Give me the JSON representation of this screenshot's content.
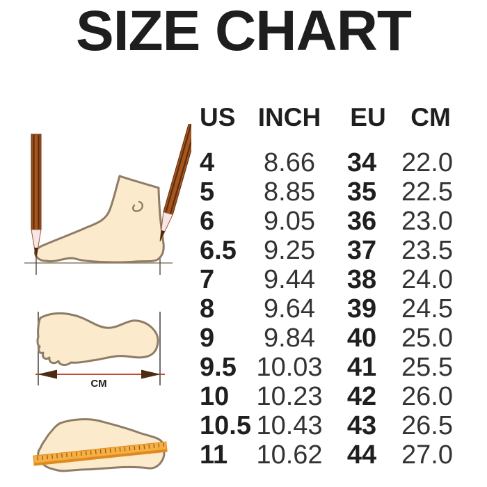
{
  "title": "SIZE CHART",
  "table": {
    "headers": {
      "us": "US",
      "inch": "INCH",
      "eu": "EU",
      "cm": "CM"
    },
    "rows": [
      {
        "us": "4",
        "inch": "8.66",
        "eu": "34",
        "cm": "22.0"
      },
      {
        "us": "5",
        "inch": "8.85",
        "eu": "35",
        "cm": "22.5"
      },
      {
        "us": "6",
        "inch": "9.05",
        "eu": "36",
        "cm": "23.0"
      },
      {
        "us": "6.5",
        "inch": "9.25",
        "eu": "37",
        "cm": "23.5"
      },
      {
        "us": "7",
        "inch": "9.44",
        "eu": "38",
        "cm": "24.0"
      },
      {
        "us": "8",
        "inch": "9.64",
        "eu": "39",
        "cm": "24.5"
      },
      {
        "us": "9",
        "inch": "9.84",
        "eu": "40",
        "cm": "25.0"
      },
      {
        "us": "9.5",
        "inch": "10.03",
        "eu": "41",
        "cm": "25.5"
      },
      {
        "us": "10",
        "inch": "10.23",
        "eu": "42",
        "cm": "26.0"
      },
      {
        "us": "10.5",
        "inch": "10.43",
        "eu": "43",
        "cm": "26.5"
      },
      {
        "us": "11",
        "inch": "10.62",
        "eu": "44",
        "cm": "27.0"
      }
    ]
  },
  "illustrations": {
    "cm_label": "CM",
    "palette": {
      "foot_fill": "#fbeacc",
      "foot_outline": "#8d7c66",
      "pencil_body": "#a4571f",
      "pencil_stripe": "#5f2c0f",
      "pencil_wood": "#f5e6ec",
      "pencil_tip": "#4a2a12",
      "ruler_fill": "#f6ae45",
      "ruler_edge": "#dd8b1f",
      "ruler_tick": "#8a5a10",
      "arrow_line": "#bf4f2c",
      "arrow_head": "#4f2a12",
      "guide_line": "#4a4a4a",
      "text_color": "#1f1f1f"
    }
  },
  "chart_data": {
    "type": "table",
    "title": "SIZE CHART",
    "columns": [
      "US",
      "INCH",
      "EU",
      "CM"
    ],
    "rows": [
      [
        "4",
        "8.66",
        "34",
        "22.0"
      ],
      [
        "5",
        "8.85",
        "35",
        "22.5"
      ],
      [
        "6",
        "9.05",
        "36",
        "23.0"
      ],
      [
        "6.5",
        "9.25",
        "37",
        "23.5"
      ],
      [
        "7",
        "9.44",
        "38",
        "24.0"
      ],
      [
        "8",
        "9.64",
        "39",
        "24.5"
      ],
      [
        "9",
        "9.84",
        "40",
        "25.0"
      ],
      [
        "9.5",
        "10.03",
        "41",
        "25.5"
      ],
      [
        "10",
        "10.23",
        "42",
        "26.0"
      ],
      [
        "10.5",
        "10.43",
        "43",
        "26.5"
      ],
      [
        "11",
        "10.62",
        "44",
        "27.0"
      ]
    ]
  }
}
